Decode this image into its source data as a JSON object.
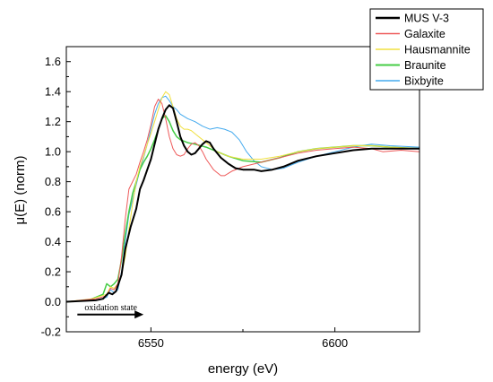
{
  "chart_data": {
    "type": "line",
    "xlabel": "energy (eV)",
    "ylabel": "μ(E) (norm)",
    "xlim": [
      6527,
      6623
    ],
    "ylim": [
      -0.2,
      1.7
    ],
    "x_ticks": [
      6550,
      6600
    ],
    "x_tick_labels": [
      "6550",
      "6600"
    ],
    "y_ticks": [
      -0.2,
      0.0,
      0.2,
      0.4,
      0.6,
      0.8,
      1.0,
      1.2,
      1.4,
      1.6
    ],
    "y_tick_labels": [
      "-0.2",
      "0.0",
      "0.2",
      "0.4",
      "0.6",
      "0.8",
      "1.0",
      "1.2",
      "1.4",
      "1.6"
    ],
    "grid": false,
    "legend_position": "top-right",
    "annotation": {
      "text": "oxidation state",
      "arrow_from_x": 6530,
      "arrow_to_x": 6548,
      "arrow_y": -0.085
    },
    "series": [
      {
        "name": "MUS V-3",
        "color": "#000000",
        "width": 2,
        "points": [
          [
            6527,
            0
          ],
          [
            6535,
            0.01
          ],
          [
            6537,
            0.02
          ],
          [
            6538.5,
            0.06
          ],
          [
            6539.5,
            0.05
          ],
          [
            6540.5,
            0.07
          ],
          [
            6542,
            0.18
          ],
          [
            6543,
            0.35
          ],
          [
            6544.5,
            0.5
          ],
          [
            6546,
            0.62
          ],
          [
            6547,
            0.75
          ],
          [
            6548,
            0.81
          ],
          [
            6549,
            0.88
          ],
          [
            6550,
            0.95
          ],
          [
            6551,
            1.05
          ],
          [
            6552,
            1.15
          ],
          [
            6553,
            1.22
          ],
          [
            6554,
            1.28
          ],
          [
            6555,
            1.31
          ],
          [
            6556,
            1.29
          ],
          [
            6557,
            1.2
          ],
          [
            6558,
            1.1
          ],
          [
            6559,
            1.04
          ],
          [
            6560,
            1.0
          ],
          [
            6561,
            0.98
          ],
          [
            6562,
            0.99
          ],
          [
            6563,
            1.02
          ],
          [
            6564,
            1.05
          ],
          [
            6565,
            1.07
          ],
          [
            6566,
            1.06
          ],
          [
            6567,
            1.02
          ],
          [
            6569,
            0.96
          ],
          [
            6571,
            0.92
          ],
          [
            6573,
            0.89
          ],
          [
            6575,
            0.88
          ],
          [
            6578,
            0.88
          ],
          [
            6580,
            0.87
          ],
          [
            6583,
            0.88
          ],
          [
            6586,
            0.9
          ],
          [
            6590,
            0.94
          ],
          [
            6595,
            0.97
          ],
          [
            6600,
            0.99
          ],
          [
            6605,
            1.01
          ],
          [
            6610,
            1.02
          ],
          [
            6615,
            1.02
          ],
          [
            6620,
            1.02
          ],
          [
            6623,
            1.02
          ]
        ]
      },
      {
        "name": "Galaxite",
        "color": "#ee5a5a",
        "width": 1,
        "points": [
          [
            6527,
            0
          ],
          [
            6535,
            0.02
          ],
          [
            6538,
            0.04
          ],
          [
            6539,
            0.09
          ],
          [
            6540,
            0.08
          ],
          [
            6541,
            0.12
          ],
          [
            6542,
            0.3
          ],
          [
            6543,
            0.55
          ],
          [
            6544,
            0.75
          ],
          [
            6545,
            0.8
          ],
          [
            6546,
            0.85
          ],
          [
            6547,
            0.93
          ],
          [
            6548,
            1.0
          ],
          [
            6549,
            1.08
          ],
          [
            6550,
            1.18
          ],
          [
            6551,
            1.3
          ],
          [
            6552,
            1.35
          ],
          [
            6553,
            1.32
          ],
          [
            6554,
            1.22
          ],
          [
            6555,
            1.1
          ],
          [
            6556,
            1.02
          ],
          [
            6557,
            0.98
          ],
          [
            6558,
            0.97
          ],
          [
            6559,
            0.98
          ],
          [
            6560,
            1.02
          ],
          [
            6561,
            1.05
          ],
          [
            6562,
            1.06
          ],
          [
            6563,
            1.04
          ],
          [
            6564,
            1.0
          ],
          [
            6565,
            0.95
          ],
          [
            6567,
            0.88
          ],
          [
            6569,
            0.84
          ],
          [
            6570,
            0.84
          ],
          [
            6572,
            0.87
          ],
          [
            6575,
            0.9
          ],
          [
            6580,
            0.93
          ],
          [
            6585,
            0.96
          ],
          [
            6590,
            0.99
          ],
          [
            6595,
            1.01
          ],
          [
            6600,
            1.02
          ],
          [
            6605,
            1.03
          ],
          [
            6610,
            1.02
          ],
          [
            6613,
            1.0
          ],
          [
            6618,
            1.01
          ],
          [
            6623,
            1.0
          ]
        ]
      },
      {
        "name": "Hausmannite",
        "color": "#f0e040",
        "width": 1,
        "points": [
          [
            6527,
            0
          ],
          [
            6534,
            0.02
          ],
          [
            6538,
            0.05
          ],
          [
            6539,
            0.1
          ],
          [
            6540,
            0.09
          ],
          [
            6541,
            0.12
          ],
          [
            6542,
            0.18
          ],
          [
            6543,
            0.3
          ],
          [
            6544,
            0.48
          ],
          [
            6545,
            0.65
          ],
          [
            6546,
            0.8
          ],
          [
            6547,
            0.9
          ],
          [
            6548,
            0.97
          ],
          [
            6549,
            1.05
          ],
          [
            6550,
            1.12
          ],
          [
            6551,
            1.2
          ],
          [
            6552,
            1.28
          ],
          [
            6553,
            1.36
          ],
          [
            6554,
            1.4
          ],
          [
            6555,
            1.38
          ],
          [
            6556,
            1.3
          ],
          [
            6557,
            1.22
          ],
          [
            6558,
            1.17
          ],
          [
            6559,
            1.15
          ],
          [
            6560,
            1.15
          ],
          [
            6561,
            1.14
          ],
          [
            6562,
            1.12
          ],
          [
            6564,
            1.08
          ],
          [
            6566,
            1.04
          ],
          [
            6568,
            1.0
          ],
          [
            6571,
            0.97
          ],
          [
            6575,
            0.95
          ],
          [
            6580,
            0.95
          ],
          [
            6585,
            0.97
          ],
          [
            6590,
            1.0
          ],
          [
            6595,
            1.02
          ],
          [
            6600,
            1.03
          ],
          [
            6605,
            1.04
          ],
          [
            6610,
            1.04
          ],
          [
            6615,
            1.03
          ],
          [
            6623,
            1.02
          ]
        ]
      },
      {
        "name": "Braunite",
        "color": "#44cc44",
        "width": 1.5,
        "points": [
          [
            6527,
            0
          ],
          [
            6533,
            0.01
          ],
          [
            6537,
            0.05
          ],
          [
            6538,
            0.12
          ],
          [
            6539,
            0.1
          ],
          [
            6540,
            0.12
          ],
          [
            6541,
            0.15
          ],
          [
            6542,
            0.28
          ],
          [
            6543,
            0.45
          ],
          [
            6544,
            0.6
          ],
          [
            6545,
            0.72
          ],
          [
            6546,
            0.8
          ],
          [
            6547,
            0.88
          ],
          [
            6548,
            0.93
          ],
          [
            6549,
            0.97
          ],
          [
            6550,
            1.02
          ],
          [
            6551,
            1.08
          ],
          [
            6552,
            1.15
          ],
          [
            6553,
            1.22
          ],
          [
            6554,
            1.24
          ],
          [
            6555,
            1.2
          ],
          [
            6556,
            1.14
          ],
          [
            6557,
            1.1
          ],
          [
            6558,
            1.08
          ],
          [
            6560,
            1.06
          ],
          [
            6562,
            1.05
          ],
          [
            6565,
            1.03
          ],
          [
            6568,
            1.0
          ],
          [
            6571,
            0.97
          ],
          [
            6575,
            0.94
          ],
          [
            6580,
            0.93
          ],
          [
            6585,
            0.96
          ],
          [
            6590,
            1.0
          ],
          [
            6595,
            1.02
          ],
          [
            6600,
            1.03
          ],
          [
            6605,
            1.04
          ],
          [
            6610,
            1.04
          ],
          [
            6615,
            1.03
          ],
          [
            6623,
            1.02
          ]
        ]
      },
      {
        "name": "Bixbyite",
        "color": "#44aaee",
        "width": 1,
        "points": [
          [
            6527,
            0
          ],
          [
            6535,
            0.01
          ],
          [
            6538,
            0.03
          ],
          [
            6539,
            0.08
          ],
          [
            6540,
            0.06
          ],
          [
            6541,
            0.08
          ],
          [
            6542,
            0.2
          ],
          [
            6543,
            0.4
          ],
          [
            6544,
            0.58
          ],
          [
            6545,
            0.68
          ],
          [
            6546,
            0.78
          ],
          [
            6547,
            0.88
          ],
          [
            6548,
            0.96
          ],
          [
            6549,
            1.05
          ],
          [
            6550,
            1.15
          ],
          [
            6551,
            1.25
          ],
          [
            6552,
            1.32
          ],
          [
            6553,
            1.36
          ],
          [
            6554,
            1.37
          ],
          [
            6555,
            1.34
          ],
          [
            6556,
            1.3
          ],
          [
            6557,
            1.28
          ],
          [
            6558,
            1.25
          ],
          [
            6560,
            1.22
          ],
          [
            6562,
            1.2
          ],
          [
            6564,
            1.17
          ],
          [
            6566,
            1.15
          ],
          [
            6568,
            1.16
          ],
          [
            6570,
            1.15
          ],
          [
            6572,
            1.13
          ],
          [
            6574,
            1.08
          ],
          [
            6576,
            1.0
          ],
          [
            6578,
            0.94
          ],
          [
            6580,
            0.9
          ],
          [
            6583,
            0.88
          ],
          [
            6586,
            0.89
          ],
          [
            6590,
            0.93
          ],
          [
            6595,
            0.97
          ],
          [
            6600,
            1.0
          ],
          [
            6605,
            1.03
          ],
          [
            6610,
            1.05
          ],
          [
            6615,
            1.04
          ],
          [
            6623,
            1.03
          ]
        ]
      }
    ]
  }
}
